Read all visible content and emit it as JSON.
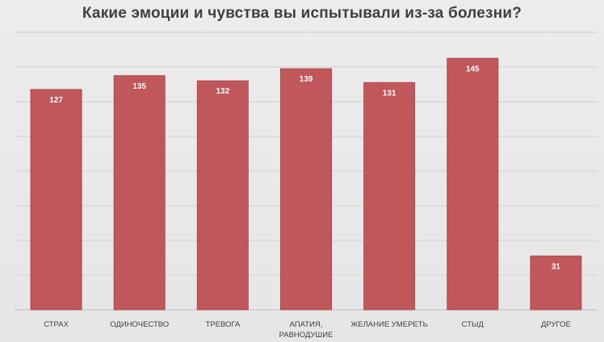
{
  "chart_data": {
    "type": "bar",
    "title": "Какие эмоции и чувства вы испытывали из-за болезни?",
    "categories": [
      [
        "СТРАХ"
      ],
      [
        "ОДИНОЧЕСТВО"
      ],
      [
        "ТРЕВОГА"
      ],
      [
        "АПАТИЯ,",
        "РАВНОДУШИЕ"
      ],
      [
        "ЖЕЛАНИЕ УМЕРЕТЬ"
      ],
      [
        "СТЫД"
      ],
      [
        "ДРУГОЕ"
      ]
    ],
    "values": [
      127,
      135,
      132,
      139,
      131,
      145,
      31
    ],
    "ylim": [
      0,
      160
    ],
    "grid": true,
    "colors": {
      "bar": "#c0575a",
      "bar_label": "#ffffff"
    }
  }
}
